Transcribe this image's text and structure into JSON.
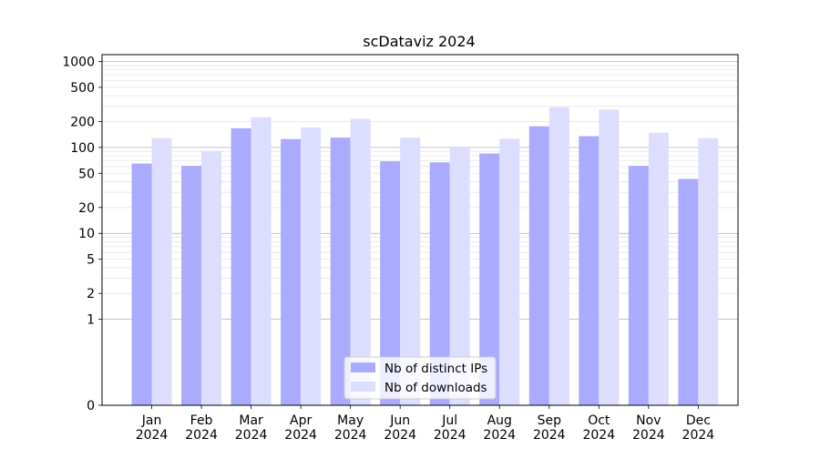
{
  "chart_data": {
    "type": "bar",
    "title": "scDataviz 2024",
    "xlabel": "",
    "ylabel": "",
    "y_scale": "symlog",
    "ylim": [
      0,
      1200
    ],
    "y_ticks": [
      "0",
      "1",
      "2",
      "5",
      "10",
      "20",
      "50",
      "100",
      "200",
      "500",
      "1000"
    ],
    "grid": true,
    "legend_position": "bottom-center",
    "categories": [
      [
        "Jan",
        "2024"
      ],
      [
        "Feb",
        "2024"
      ],
      [
        "Mar",
        "2024"
      ],
      [
        "Apr",
        "2024"
      ],
      [
        "May",
        "2024"
      ],
      [
        "Jun",
        "2024"
      ],
      [
        "Jul",
        "2024"
      ],
      [
        "Aug",
        "2024"
      ],
      [
        "Sep",
        "2024"
      ],
      [
        "Oct",
        "2024"
      ],
      [
        "Nov",
        "2024"
      ],
      [
        "Dec",
        "2024"
      ]
    ],
    "series": [
      {
        "name": "Nb of distinct IPs",
        "color": "#aaaaff",
        "values": [
          65,
          61,
          167,
          125,
          130,
          69,
          67,
          85,
          176,
          135,
          61,
          43
        ]
      },
      {
        "name": "Nb of downloads",
        "color": "#ddddff",
        "values": [
          128,
          90,
          224,
          171,
          214,
          130,
          100,
          126,
          293,
          275,
          148,
          128
        ]
      }
    ]
  }
}
